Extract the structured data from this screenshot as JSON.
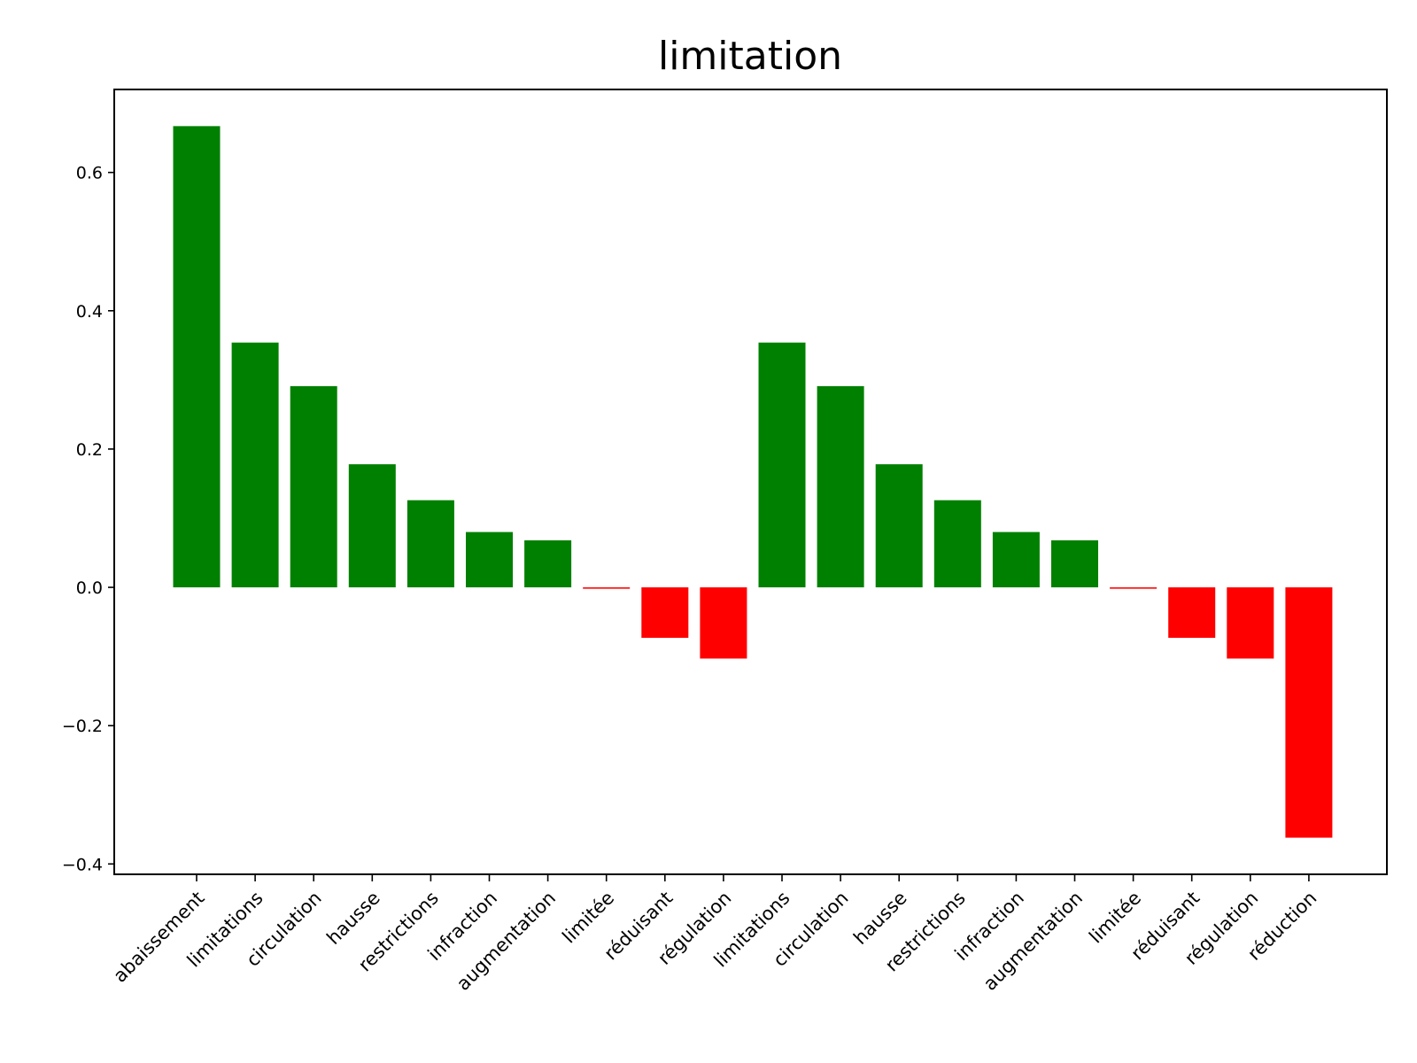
{
  "chart_data": {
    "type": "bar",
    "title": "limitation",
    "xlabel": "",
    "ylabel": "",
    "ylim": [
      -0.415,
      0.72
    ],
    "yticks": [
      0.6,
      0.4,
      0.2,
      0.0,
      -0.2,
      -0.4
    ],
    "ytick_labels": [
      "0.6",
      "0.4",
      "0.2",
      "0.0",
      "−0.2",
      "−0.4"
    ],
    "categories": [
      "abaissement",
      "limitations",
      "circulation",
      "hausse",
      "restrictions",
      "infraction",
      "augmentation",
      "limitée",
      "réduisant",
      "régulation",
      "limitations",
      "circulation",
      "hausse",
      "restrictions",
      "infraction",
      "augmentation",
      "limitée",
      "réduisant",
      "régulation",
      "réduction"
    ],
    "values": [
      0.667,
      0.354,
      0.291,
      0.178,
      0.126,
      0.08,
      0.068,
      -0.002,
      -0.073,
      -0.103,
      0.354,
      0.291,
      0.178,
      0.126,
      0.08,
      0.068,
      -0.002,
      -0.073,
      -0.103,
      -0.362
    ],
    "colors": {
      "positive": "#008000",
      "negative": "#ff0000"
    },
    "grid": false,
    "legend": "none"
  }
}
